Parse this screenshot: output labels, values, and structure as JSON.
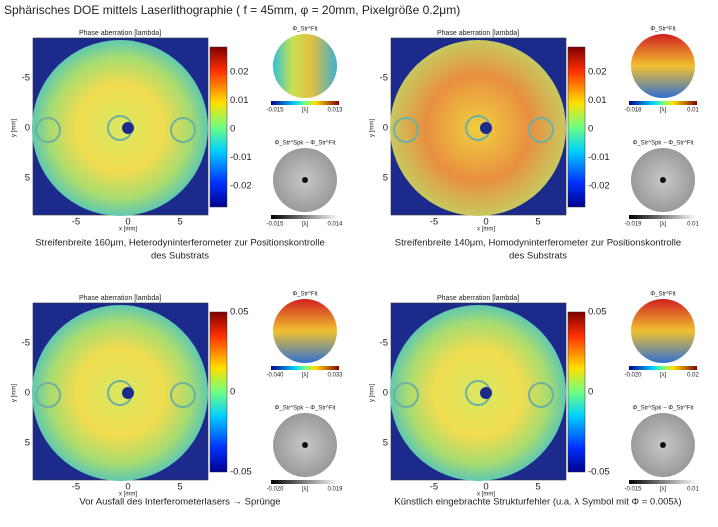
{
  "header": {
    "title": "Sphärisches DOE mittels Laserlithographie ( f = 45mm, φ = 20mm, Pixelgröße 0.2μm)"
  },
  "panels": [
    {
      "plot_title": "Phase aberration [lambda]",
      "ylabel": "y [mm]",
      "xlabel": "x [mm]",
      "xticks": [
        "-5",
        "0",
        "5"
      ],
      "yticks": [
        "-5",
        "0",
        "5"
      ],
      "colorbar_ticks": [
        "0.02",
        "0.01",
        "0",
        "-0.01",
        "-0.02"
      ],
      "insets": [
        {
          "label": "Φ_Str^Fit",
          "ticks": [
            "-0.015",
            "[λ]",
            "0.013"
          ]
        },
        {
          "label": "Φ_Str^Spk − Φ_Str^Fit",
          "ticks": [
            "-0.015",
            "[λ]",
            "0.014"
          ]
        }
      ],
      "caption": [
        "Streifenbreite 160μm, Heterodyninterferometer zur Positionskontrolle",
        "des Substrats"
      ]
    },
    {
      "plot_title": "Phase aberration [lambda]",
      "ylabel": "y [mm]",
      "xlabel": "x [mm]",
      "xticks": [
        "-5",
        "0",
        "5"
      ],
      "yticks": [
        "-5",
        "0",
        "5"
      ],
      "colorbar_ticks": [
        "0.02",
        "0.01",
        "0",
        "-0.01",
        "-0.02"
      ],
      "insets": [
        {
          "label": "Φ_Str^Fit",
          "ticks": [
            "-0.018",
            "[λ]",
            "0.01"
          ]
        },
        {
          "label": "Φ_Str^Spk − Φ_Str^Fit",
          "ticks": [
            "-0.019",
            "[λ]",
            "0.01"
          ]
        }
      ],
      "caption": [
        "Streifenbreite 140μm, Homodyninterferometer zur Positionskontrolle",
        "des Substrats"
      ]
    },
    {
      "plot_title": "Phase aberration [lambda]",
      "ylabel": "y [mm]",
      "xlabel": "x [mm]",
      "xticks": [
        "-5",
        "0",
        "5"
      ],
      "yticks": [
        "-5",
        "0",
        "5"
      ],
      "colorbar_ticks": [
        "0.05",
        "0",
        "-0.05"
      ],
      "insets": [
        {
          "label": "Φ_Str^Fit",
          "ticks": [
            "-0.040",
            "[λ]",
            "0.033"
          ]
        },
        {
          "label": "Φ_Str^Spk − Φ_Str^Fit",
          "ticks": [
            "-0.020",
            "[λ]",
            "0.019"
          ]
        }
      ],
      "caption": [
        "Vor Ausfall des Interferometerlasers → Sprünge"
      ]
    },
    {
      "plot_title": "Phase aberration [lambda]",
      "ylabel": "y [mm]",
      "xlabel": "x [mm]",
      "xticks": [
        "-5",
        "0",
        "5"
      ],
      "yticks": [
        "-5",
        "0",
        "5"
      ],
      "colorbar_ticks": [
        "0.05",
        "0",
        "-0.05"
      ],
      "insets": [
        {
          "label": "Φ_Str^Fit",
          "ticks": [
            "-0.020",
            "[λ]",
            "0.02"
          ]
        },
        {
          "label": "Φ_Str^Spk − Φ_Str^Fit",
          "ticks": [
            "-0.015",
            "[λ]",
            "0.01"
          ]
        }
      ],
      "caption": [
        "Künstlich eingebrachte Strukturfehler (u.a. λ Symbol mit Φ = 0.005λ)"
      ]
    }
  ]
}
